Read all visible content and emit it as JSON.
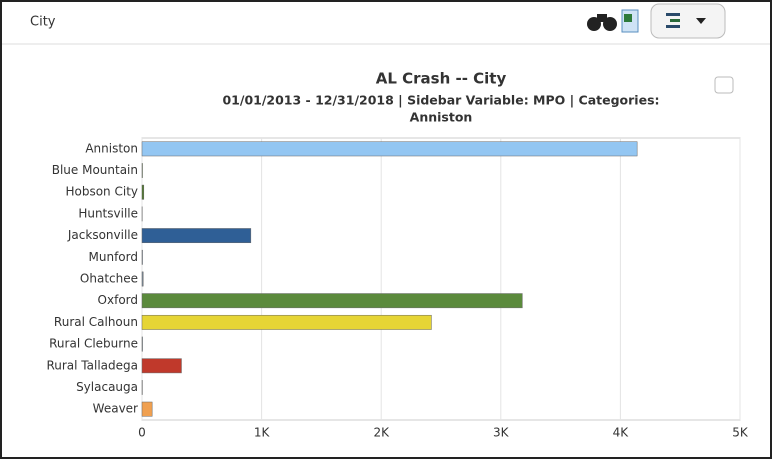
{
  "panel_title": "City",
  "chart_data": {
    "type": "hbar",
    "title": "AL Crash -- City",
    "subtitle": [
      "01/01/2013 - 12/31/2018 | Sidebar Variable: MPO | Categories:",
      "Anniston"
    ],
    "categories": [
      "Anniston",
      "Blue Mountain",
      "Hobson City",
      "Huntsville",
      "Jacksonville",
      "Munford",
      "Ohatchee",
      "Oxford",
      "Rural Calhoun",
      "Rural Cleburne",
      "Rural Talladega",
      "Sylacauga",
      "Weaver"
    ],
    "values": [
      4140,
      5,
      15,
      2,
      910,
      5,
      10,
      3180,
      2420,
      5,
      330,
      3,
      85
    ],
    "colors": [
      "#93c6f2",
      "#b8d4a0",
      "#4f7a2a",
      "#9aa8b8",
      "#2f5f96",
      "#b0c8e0",
      "#7a8a9a",
      "#5b8a3c",
      "#e6d535",
      "#a0b0c0",
      "#c0392b",
      "#a0b0c0",
      "#f0a050"
    ],
    "xlim": [
      0,
      5000
    ],
    "xticks": [
      0,
      {
        "value": 1000,
        "label": "1K"
      },
      {
        "value": 2000,
        "label": "2K"
      },
      {
        "value": 3000,
        "label": "3K"
      },
      {
        "value": 4000,
        "label": "4K"
      },
      {
        "value": 5000,
        "label": "5K"
      }
    ],
    "grid": true
  }
}
